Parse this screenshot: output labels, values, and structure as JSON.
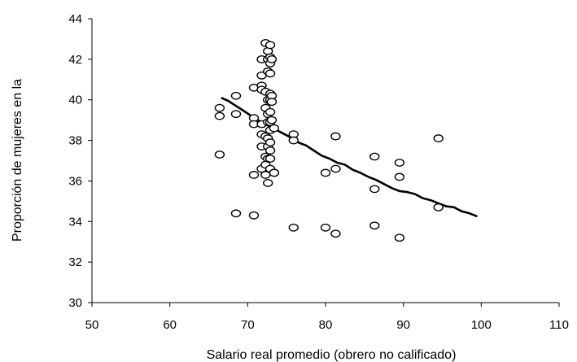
{
  "chart_data": {
    "type": "scatter",
    "title": "",
    "xlabel": "Salario real promedio (obrero no calificado)",
    "ylabel": "Proporción de mujeres en la",
    "xlim": [
      50,
      110
    ],
    "ylim": [
      30,
      44
    ],
    "xticks": [
      50,
      60,
      70,
      80,
      90,
      100,
      110
    ],
    "yticks": [
      30,
      32,
      34,
      36,
      38,
      40,
      42,
      44
    ],
    "grid": false,
    "legend": "none",
    "colors": {
      "line": "#000000",
      "marker_stroke": "#000000",
      "marker_fill": "#ffffff"
    },
    "series": [
      {
        "kind": "scatter",
        "points": [
          [
            66.4,
            39.6
          ],
          [
            66.4,
            39.2
          ],
          [
            66.4,
            37.3
          ],
          [
            68.5,
            40.2
          ],
          [
            68.5,
            39.3
          ],
          [
            68.5,
            34.4
          ],
          [
            70.8,
            40.6
          ],
          [
            70.8,
            39.1
          ],
          [
            70.8,
            38.8
          ],
          [
            70.8,
            36.3
          ],
          [
            70.8,
            34.3
          ],
          [
            71.8,
            42.0
          ],
          [
            71.8,
            41.2
          ],
          [
            71.8,
            40.7
          ],
          [
            71.8,
            40.5
          ],
          [
            71.8,
            38.8
          ],
          [
            71.8,
            38.3
          ],
          [
            71.8,
            37.7
          ],
          [
            71.8,
            36.6
          ],
          [
            72.3,
            42.8
          ],
          [
            72.3,
            40.4
          ],
          [
            72.3,
            39.6
          ],
          [
            72.3,
            38.2
          ],
          [
            72.3,
            37.2
          ],
          [
            72.3,
            36.8
          ],
          [
            72.3,
            36.3
          ],
          [
            72.6,
            42.4
          ],
          [
            72.6,
            42.0
          ],
          [
            72.6,
            41.4
          ],
          [
            72.6,
            40.0
          ],
          [
            72.6,
            39.3
          ],
          [
            72.6,
            38.9
          ],
          [
            72.6,
            38.1
          ],
          [
            72.6,
            37.7
          ],
          [
            72.6,
            37.1
          ],
          [
            72.6,
            35.9
          ],
          [
            72.9,
            42.7
          ],
          [
            72.9,
            42.1
          ],
          [
            72.9,
            41.8
          ],
          [
            72.9,
            41.3
          ],
          [
            72.9,
            40.3
          ],
          [
            72.9,
            40.0
          ],
          [
            72.9,
            39.4
          ],
          [
            72.9,
            38.9
          ],
          [
            72.9,
            38.5
          ],
          [
            72.9,
            37.9
          ],
          [
            72.9,
            37.5
          ],
          [
            72.9,
            37.1
          ],
          [
            72.9,
            36.6
          ],
          [
            73.1,
            42.0
          ],
          [
            73.1,
            40.2
          ],
          [
            73.1,
            39.9
          ],
          [
            73.1,
            39.0
          ],
          [
            73.4,
            38.6
          ],
          [
            73.4,
            36.4
          ],
          [
            73.4,
            36.4
          ],
          [
            75.9,
            38.3
          ],
          [
            75.9,
            38.0
          ],
          [
            75.9,
            33.7
          ],
          [
            80.0,
            36.4
          ],
          [
            80.0,
            33.7
          ],
          [
            81.3,
            38.2
          ],
          [
            81.3,
            36.6
          ],
          [
            81.3,
            33.4
          ],
          [
            86.3,
            37.2
          ],
          [
            86.3,
            35.6
          ],
          [
            86.3,
            33.8
          ],
          [
            89.5,
            36.9
          ],
          [
            89.5,
            36.2
          ],
          [
            89.5,
            33.2
          ],
          [
            94.5,
            38.1
          ],
          [
            94.5,
            34.7
          ]
        ]
      },
      {
        "kind": "line",
        "points": [
          [
            66.6,
            40.1
          ],
          [
            67.5,
            39.95
          ],
          [
            68.5,
            39.7
          ],
          [
            69.5,
            39.45
          ],
          [
            70.5,
            39.2
          ],
          [
            71.5,
            38.95
          ],
          [
            72.5,
            38.75
          ],
          [
            73.5,
            38.55
          ],
          [
            74.5,
            38.35
          ],
          [
            75.5,
            38.15
          ],
          [
            76.5,
            37.9
          ],
          [
            77.5,
            37.75
          ],
          [
            78.5,
            37.5
          ],
          [
            79.5,
            37.25
          ],
          [
            80.5,
            37.1
          ],
          [
            81.5,
            36.9
          ],
          [
            82.5,
            36.8
          ],
          [
            83.5,
            36.55
          ],
          [
            84.5,
            36.4
          ],
          [
            85.5,
            36.2
          ],
          [
            86.5,
            36.05
          ],
          [
            87.5,
            35.85
          ],
          [
            88.5,
            35.65
          ],
          [
            89.5,
            35.5
          ],
          [
            90.5,
            35.45
          ],
          [
            91.5,
            35.35
          ],
          [
            92.5,
            35.15
          ],
          [
            93.5,
            35.05
          ],
          [
            94.5,
            34.9
          ],
          [
            95.5,
            34.75
          ],
          [
            96.5,
            34.7
          ],
          [
            97.5,
            34.5
          ],
          [
            98.5,
            34.4
          ],
          [
            99.5,
            34.25
          ]
        ]
      }
    ]
  }
}
